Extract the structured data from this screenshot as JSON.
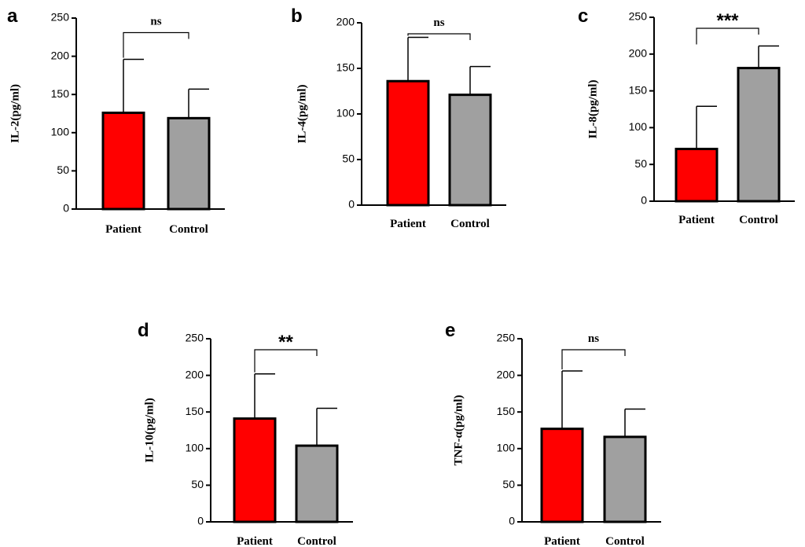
{
  "chart_data": [
    {
      "panel": "a",
      "type": "bar",
      "ylabel": "IL-2(pg/ml)",
      "categories": [
        "Patient",
        "Control"
      ],
      "values": [
        126,
        119
      ],
      "errors": [
        70,
        38
      ],
      "ylim": [
        0,
        250
      ],
      "yticks": [
        0,
        50,
        100,
        150,
        200,
        250
      ],
      "significance": "ns",
      "colors": [
        "#ff0000",
        "#a0a0a0"
      ]
    },
    {
      "panel": "b",
      "type": "bar",
      "ylabel": "IL-4(pg/ml)",
      "categories": [
        "Patient",
        "Control"
      ],
      "values": [
        136,
        121
      ],
      "errors": [
        48,
        31
      ],
      "ylim": [
        0,
        200
      ],
      "yticks": [
        0,
        50,
        100,
        150,
        200
      ],
      "significance": "ns",
      "colors": [
        "#ff0000",
        "#a0a0a0"
      ]
    },
    {
      "panel": "c",
      "type": "bar",
      "ylabel": "IL-8(pg/ml)",
      "categories": [
        "Patient",
        "Control"
      ],
      "values": [
        71,
        181
      ],
      "errors": [
        58,
        30
      ],
      "ylim": [
        0,
        250
      ],
      "yticks": [
        0,
        50,
        100,
        150,
        200,
        250
      ],
      "significance": "***",
      "colors": [
        "#ff0000",
        "#a0a0a0"
      ]
    },
    {
      "panel": "d",
      "type": "bar",
      "ylabel": "IL-10(pg/ml)",
      "categories": [
        "Patient",
        "Control"
      ],
      "values": [
        141,
        104
      ],
      "errors": [
        61,
        51
      ],
      "ylim": [
        0,
        250
      ],
      "yticks": [
        0,
        50,
        100,
        150,
        200,
        250
      ],
      "significance": "**",
      "colors": [
        "#ff0000",
        "#a0a0a0"
      ]
    },
    {
      "panel": "e",
      "type": "bar",
      "ylabel": "TNF-α(pg/ml)",
      "categories": [
        "Patient",
        "Control"
      ],
      "values": [
        127,
        116
      ],
      "errors": [
        79,
        38
      ],
      "ylim": [
        0,
        250
      ],
      "yticks": [
        0,
        50,
        100,
        150,
        200,
        250
      ],
      "significance": "ns",
      "colors": [
        "#ff0000",
        "#a0a0a0"
      ]
    }
  ]
}
